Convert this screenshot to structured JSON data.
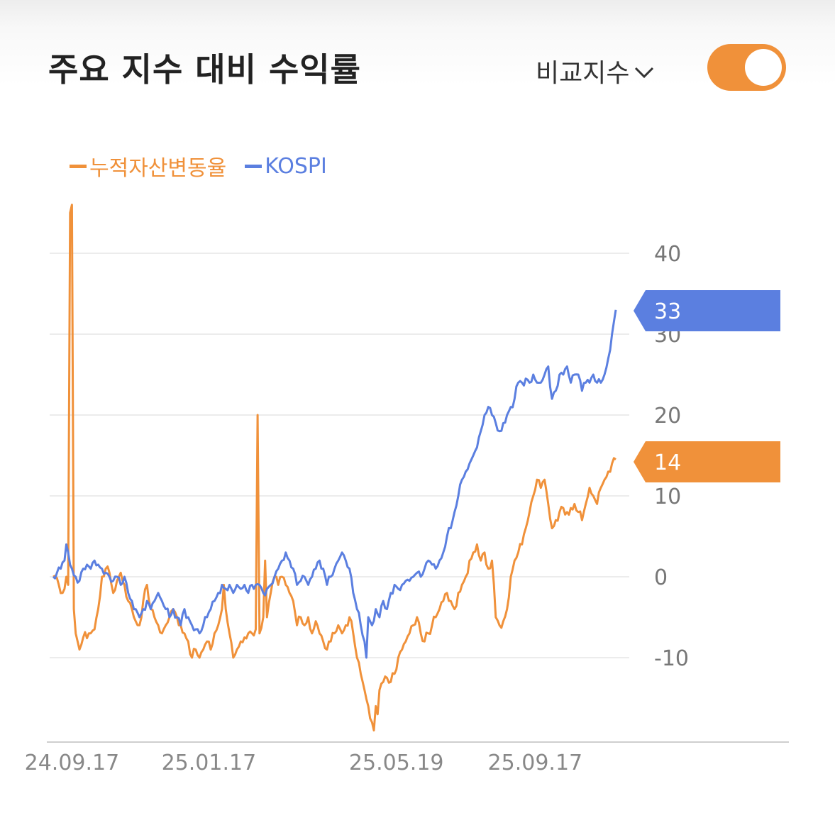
{
  "header": {
    "title": "주요 지수 대비 수익률",
    "compare_label": "비교지수",
    "toggle_on": true
  },
  "colors": {
    "accent": "#f0913a",
    "kospi": "#5b7fe0",
    "grid": "#e6e6e6"
  },
  "chart_data": {
    "type": "line",
    "title": "",
    "xlabel": "",
    "ylabel": "",
    "ylim": [
      -20,
      40
    ],
    "yticks": [
      40,
      30,
      20,
      10,
      0,
      -10
    ],
    "xtick_labels": [
      "24.09.17",
      "25.01.17",
      "25.05.19",
      "25.09.17"
    ],
    "xtick_index": [
      10,
      83,
      183,
      257
    ],
    "n_points": 301,
    "legend": "top-left",
    "grid": true,
    "series": [
      {
        "name": "누적자산변동율",
        "color": "#f0913a",
        "last_label": "14",
        "keypoints": [
          [
            0,
            0
          ],
          [
            3,
            -1
          ],
          [
            5,
            -2
          ],
          [
            6,
            -1.5
          ],
          [
            7,
            0
          ],
          [
            8,
            -1
          ],
          [
            9,
            45
          ],
          [
            10,
            46
          ],
          [
            11,
            -4
          ],
          [
            12,
            -7
          ],
          [
            13,
            -8
          ],
          [
            14,
            -9
          ],
          [
            16,
            -7.5
          ],
          [
            19,
            -7
          ],
          [
            22,
            -6.5
          ],
          [
            24,
            -4
          ],
          [
            26,
            0
          ],
          [
            28,
            1
          ],
          [
            30,
            0.5
          ],
          [
            32,
            -2
          ],
          [
            34,
            -0.5
          ],
          [
            36,
            0.5
          ],
          [
            38,
            -1
          ],
          [
            40,
            -3
          ],
          [
            42,
            -4
          ],
          [
            44,
            -5.5
          ],
          [
            46,
            -6
          ],
          [
            48,
            -3
          ],
          [
            50,
            -1
          ],
          [
            52,
            -4
          ],
          [
            54,
            -5
          ],
          [
            56,
            -6
          ],
          [
            58,
            -7
          ],
          [
            60,
            -6
          ],
          [
            62,
            -5
          ],
          [
            64,
            -4
          ],
          [
            66,
            -5
          ],
          [
            68,
            -6
          ],
          [
            70,
            -7
          ],
          [
            72,
            -8
          ],
          [
            74,
            -10
          ],
          [
            76,
            -9
          ],
          [
            78,
            -10
          ],
          [
            80,
            -9
          ],
          [
            82,
            -8
          ],
          [
            84,
            -9
          ],
          [
            86,
            -7
          ],
          [
            88,
            -6
          ],
          [
            90,
            -4
          ],
          [
            91,
            -1
          ],
          [
            92,
            -4
          ],
          [
            94,
            -7
          ],
          [
            96,
            -10
          ],
          [
            98,
            -9
          ],
          [
            100,
            -8
          ],
          [
            102,
            -7.5
          ],
          [
            104,
            -7
          ],
          [
            106,
            -7
          ],
          [
            108,
            -6.5
          ],
          [
            109,
            20
          ],
          [
            110,
            -7
          ],
          [
            112,
            -5
          ],
          [
            113,
            2
          ],
          [
            114,
            -5
          ],
          [
            116,
            -2
          ],
          [
            118,
            0
          ],
          [
            120,
            -1
          ],
          [
            122,
            0
          ],
          [
            124,
            -1
          ],
          [
            126,
            -2
          ],
          [
            128,
            -3
          ],
          [
            130,
            -6
          ],
          [
            132,
            -5
          ],
          [
            134,
            -6
          ],
          [
            136,
            -5
          ],
          [
            138,
            -7
          ],
          [
            140,
            -5.5
          ],
          [
            142,
            -7
          ],
          [
            144,
            -8
          ],
          [
            146,
            -9
          ],
          [
            148,
            -8
          ],
          [
            150,
            -7
          ],
          [
            152,
            -6
          ],
          [
            154,
            -7
          ],
          [
            156,
            -6
          ],
          [
            158,
            -5
          ],
          [
            160,
            -7
          ],
          [
            162,
            -10
          ],
          [
            164,
            -12
          ],
          [
            166,
            -14
          ],
          [
            168,
            -16
          ],
          [
            170,
            -18
          ],
          [
            171,
            -19
          ],
          [
            172,
            -16
          ],
          [
            173,
            -17
          ],
          [
            174,
            -14
          ],
          [
            176,
            -13
          ],
          [
            178,
            -12.5
          ],
          [
            180,
            -13
          ],
          [
            182,
            -12
          ],
          [
            184,
            -10
          ],
          [
            186,
            -9
          ],
          [
            188,
            -8
          ],
          [
            190,
            -7
          ],
          [
            192,
            -6
          ],
          [
            194,
            -5
          ],
          [
            196,
            -7
          ],
          [
            198,
            -8
          ],
          [
            200,
            -7
          ],
          [
            202,
            -6
          ],
          [
            204,
            -5
          ],
          [
            206,
            -4
          ],
          [
            208,
            -3
          ],
          [
            210,
            -2
          ],
          [
            212,
            -3
          ],
          [
            214,
            -4
          ],
          [
            216,
            -2
          ],
          [
            218,
            -1
          ],
          [
            220,
            0
          ],
          [
            222,
            2
          ],
          [
            224,
            3
          ],
          [
            226,
            4
          ],
          [
            228,
            2
          ],
          [
            230,
            3
          ],
          [
            232,
            1
          ],
          [
            234,
            2
          ],
          [
            236,
            -5
          ],
          [
            238,
            -6
          ],
          [
            240,
            -5.5
          ],
          [
            242,
            -4
          ],
          [
            244,
            0
          ],
          [
            246,
            2
          ],
          [
            248,
            3
          ],
          [
            250,
            4
          ],
          [
            252,
            6
          ],
          [
            254,
            8
          ],
          [
            256,
            10
          ],
          [
            258,
            12
          ],
          [
            260,
            11
          ],
          [
            262,
            12
          ],
          [
            264,
            9
          ],
          [
            266,
            6
          ],
          [
            268,
            7
          ],
          [
            270,
            8
          ],
          [
            272,
            8.5
          ],
          [
            274,
            8
          ],
          [
            276,
            8.5
          ],
          [
            278,
            9
          ],
          [
            280,
            8
          ],
          [
            282,
            7
          ],
          [
            284,
            9
          ],
          [
            286,
            11
          ],
          [
            288,
            10
          ],
          [
            290,
            9
          ],
          [
            292,
            11
          ],
          [
            294,
            12
          ],
          [
            296,
            13
          ],
          [
            298,
            14
          ],
          [
            300,
            14.5
          ]
        ]
      },
      {
        "name": "KOSPI",
        "color": "#5b7fe0",
        "last_label": "33",
        "keypoints": [
          [
            0,
            0
          ],
          [
            2,
            0.5
          ],
          [
            4,
            1
          ],
          [
            6,
            2
          ],
          [
            7,
            4
          ],
          [
            8,
            3
          ],
          [
            10,
            1
          ],
          [
            12,
            0
          ],
          [
            14,
            -0.5
          ],
          [
            16,
            1
          ],
          [
            18,
            1.5
          ],
          [
            20,
            1
          ],
          [
            22,
            2
          ],
          [
            24,
            1.5
          ],
          [
            26,
            1
          ],
          [
            28,
            0.5
          ],
          [
            30,
            0
          ],
          [
            32,
            -0.5
          ],
          [
            34,
            0
          ],
          [
            36,
            -1
          ],
          [
            38,
            0
          ],
          [
            40,
            -2
          ],
          [
            42,
            -3
          ],
          [
            44,
            -4
          ],
          [
            46,
            -5
          ],
          [
            48,
            -4
          ],
          [
            50,
            -3
          ],
          [
            52,
            -4
          ],
          [
            54,
            -3
          ],
          [
            56,
            -2
          ],
          [
            58,
            -3
          ],
          [
            60,
            -4
          ],
          [
            62,
            -5
          ],
          [
            64,
            -4
          ],
          [
            66,
            -5
          ],
          [
            68,
            -6
          ],
          [
            70,
            -4
          ],
          [
            72,
            -5
          ],
          [
            74,
            -6
          ],
          [
            76,
            -6.5
          ],
          [
            78,
            -7
          ],
          [
            80,
            -6
          ],
          [
            82,
            -5
          ],
          [
            84,
            -4
          ],
          [
            86,
            -3
          ],
          [
            88,
            -2
          ],
          [
            90,
            -1
          ],
          [
            92,
            -1.5
          ],
          [
            94,
            -1
          ],
          [
            96,
            -2
          ],
          [
            98,
            -1
          ],
          [
            100,
            -1.5
          ],
          [
            102,
            -1
          ],
          [
            104,
            -2
          ],
          [
            106,
            -1
          ],
          [
            108,
            -1
          ],
          [
            110,
            -1
          ],
          [
            112,
            -2
          ],
          [
            114,
            -1.5
          ],
          [
            116,
            -1
          ],
          [
            118,
            0
          ],
          [
            120,
            1
          ],
          [
            122,
            2
          ],
          [
            124,
            3
          ],
          [
            126,
            2
          ],
          [
            128,
            1
          ],
          [
            130,
            -1
          ],
          [
            132,
            -0.5
          ],
          [
            134,
            0
          ],
          [
            136,
            -1
          ],
          [
            138,
            0
          ],
          [
            140,
            1
          ],
          [
            142,
            2
          ],
          [
            144,
            1
          ],
          [
            146,
            -1
          ],
          [
            148,
            0
          ],
          [
            150,
            1
          ],
          [
            152,
            2
          ],
          [
            154,
            3
          ],
          [
            156,
            2
          ],
          [
            158,
            1
          ],
          [
            160,
            -2
          ],
          [
            162,
            -4
          ],
          [
            164,
            -6
          ],
          [
            166,
            -8
          ],
          [
            167,
            -10
          ],
          [
            168,
            -5
          ],
          [
            170,
            -6
          ],
          [
            172,
            -4
          ],
          [
            174,
            -5
          ],
          [
            176,
            -3
          ],
          [
            178,
            -4
          ],
          [
            180,
            -2
          ],
          [
            182,
            -1
          ],
          [
            184,
            -1.5
          ],
          [
            186,
            -1
          ],
          [
            188,
            -0.5
          ],
          [
            190,
            -0.5
          ],
          [
            192,
            0
          ],
          [
            194,
            0.5
          ],
          [
            196,
            0
          ],
          [
            198,
            1
          ],
          [
            200,
            2
          ],
          [
            202,
            1.5
          ],
          [
            204,
            1
          ],
          [
            206,
            2
          ],
          [
            208,
            3
          ],
          [
            210,
            5
          ],
          [
            212,
            6
          ],
          [
            214,
            8
          ],
          [
            216,
            10
          ],
          [
            218,
            12
          ],
          [
            220,
            13
          ],
          [
            222,
            14
          ],
          [
            224,
            15
          ],
          [
            226,
            16
          ],
          [
            228,
            18
          ],
          [
            230,
            20
          ],
          [
            232,
            21
          ],
          [
            234,
            20
          ],
          [
            236,
            19
          ],
          [
            238,
            18
          ],
          [
            240,
            19
          ],
          [
            242,
            20
          ],
          [
            244,
            21
          ],
          [
            246,
            22
          ],
          [
            248,
            24
          ],
          [
            250,
            24
          ],
          [
            252,
            24.5
          ],
          [
            254,
            24
          ],
          [
            256,
            25
          ],
          [
            258,
            24
          ],
          [
            260,
            24
          ],
          [
            262,
            25
          ],
          [
            264,
            26
          ],
          [
            266,
            22
          ],
          [
            268,
            23
          ],
          [
            270,
            25
          ],
          [
            272,
            25
          ],
          [
            274,
            26
          ],
          [
            276,
            24
          ],
          [
            278,
            25
          ],
          [
            280,
            25
          ],
          [
            282,
            23
          ],
          [
            284,
            24
          ],
          [
            286,
            24
          ],
          [
            288,
            25
          ],
          [
            290,
            24
          ],
          [
            292,
            24
          ],
          [
            294,
            25
          ],
          [
            296,
            27
          ],
          [
            298,
            30
          ],
          [
            300,
            33
          ]
        ]
      }
    ]
  }
}
